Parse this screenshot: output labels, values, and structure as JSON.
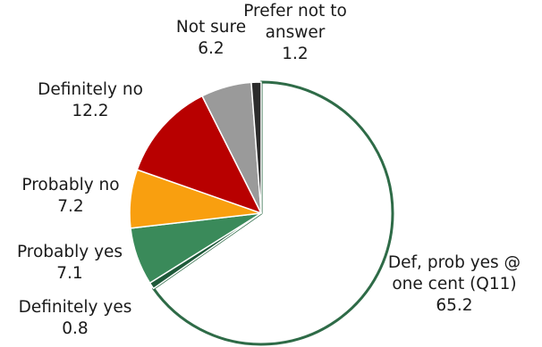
{
  "chart_data": {
    "type": "pie",
    "start_angle_deg": 0,
    "direction": "clockwise",
    "slices": [
      {
        "label": "Def, prob yes @ one cent (Q11)",
        "label_lines": [
          "Def, prob yes @",
          "one cent (Q11)"
        ],
        "value": 65.2,
        "value_text": "65.2",
        "fill": "#ffffff",
        "stroke": "#2e6b47"
      },
      {
        "label": "Definitely yes",
        "label_lines": [
          "Definitely yes"
        ],
        "value": 0.8,
        "value_text": "0.8",
        "fill": "#1f5a3a",
        "stroke": "#ffffff"
      },
      {
        "label": "Probably yes",
        "label_lines": [
          "Probably yes"
        ],
        "value": 7.1,
        "value_text": "7.1",
        "fill": "#3a8a5a",
        "stroke": "#ffffff"
      },
      {
        "label": "Probably no",
        "label_lines": [
          "Probably no"
        ],
        "value": 7.2,
        "value_text": "7.2",
        "fill": "#f99f0f",
        "stroke": "#ffffff"
      },
      {
        "label": "Definitely no",
        "label_lines": [
          "Definitely no"
        ],
        "value": 12.2,
        "value_text": "12.2",
        "fill": "#b80000",
        "stroke": "#ffffff"
      },
      {
        "label": "Not sure",
        "label_lines": [
          "Not sure"
        ],
        "value": 6.2,
        "value_text": "6.2",
        "fill": "#9a9a9a",
        "stroke": "#ffffff"
      },
      {
        "label": "Prefer not to answer",
        "label_lines": [
          "Prefer not to",
          "answer"
        ],
        "value": 1.2,
        "value_text": "1.2",
        "fill": "#2c2c2c",
        "stroke": "#ffffff"
      }
    ]
  }
}
